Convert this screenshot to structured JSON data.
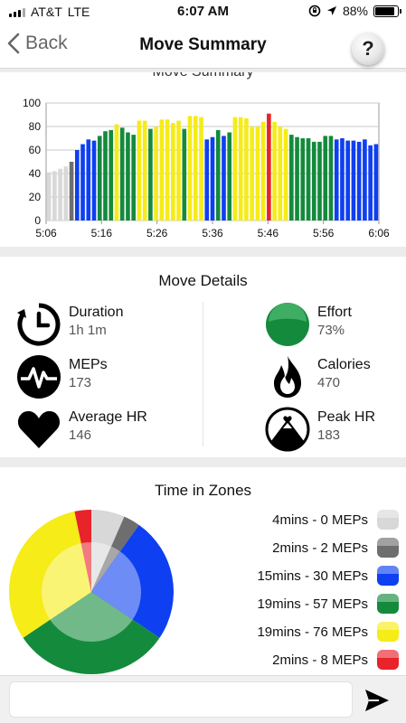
{
  "status": {
    "carrier": "AT&T",
    "network": "LTE",
    "time": "6:07 AM",
    "battery": "88%",
    "battery_level": 0.88
  },
  "nav": {
    "back_label": "Back",
    "title": "Move Summary",
    "help_label": "?"
  },
  "chart_card": {
    "title": "Move Summary"
  },
  "chart_data": {
    "type": "bar",
    "x_labels": [
      "5:06",
      "5:16",
      "5:26",
      "5:36",
      "5:46",
      "5:56",
      "6:06"
    ],
    "y_ticks": [
      0,
      20,
      40,
      60,
      80,
      100
    ],
    "ylim": [
      0,
      100
    ],
    "xlim": [
      "5:06",
      "6:06"
    ],
    "grid": true,
    "values": [
      41,
      42,
      44,
      46,
      50,
      60,
      65,
      69,
      68,
      72,
      76,
      77,
      82,
      79,
      75,
      73,
      85,
      85,
      78,
      80,
      86,
      86,
      83,
      85,
      78,
      89,
      89,
      88,
      69,
      71,
      77,
      72,
      75,
      88,
      88,
      87,
      80,
      80,
      84,
      91,
      84,
      80,
      78,
      73,
      71,
      70,
      70,
      67,
      67,
      72,
      72,
      69,
      70,
      68,
      68,
      67,
      69,
      64,
      65
    ],
    "bar_zones": [
      0,
      0,
      0,
      0,
      1,
      2,
      2,
      2,
      2,
      3,
      3,
      3,
      4,
      3,
      3,
      3,
      4,
      4,
      3,
      4,
      4,
      4,
      4,
      4,
      3,
      4,
      4,
      4,
      2,
      2,
      3,
      2,
      3,
      4,
      4,
      4,
      4,
      4,
      4,
      5,
      4,
      4,
      4,
      3,
      3,
      3,
      3,
      3,
      3,
      3,
      3,
      2,
      2,
      2,
      2,
      2,
      2,
      2,
      2
    ],
    "zone_colors": [
      "#d8d8d8",
      "#6e6e6e",
      "#0e3ff0",
      "#148a3c",
      "#f5ec18",
      "#e8232a"
    ]
  },
  "details": {
    "title": "Move Details",
    "items": [
      {
        "label": "Duration",
        "value": "1h 1m",
        "icon": "clock-icon"
      },
      {
        "label": "Effort",
        "value": "73%",
        "icon": "effort-icon"
      },
      {
        "label": "MEPs",
        "value": "173",
        "icon": "meps-icon"
      },
      {
        "label": "Calories",
        "value": "470",
        "icon": "flame-icon"
      },
      {
        "label": "Average HR",
        "value": "146",
        "icon": "heart-icon"
      },
      {
        "label": "Peak HR",
        "value": "183",
        "icon": "peak-hr-icon"
      }
    ]
  },
  "zones": {
    "title": "Time in Zones",
    "legend": [
      {
        "label": "4mins - 0 MEPs",
        "color": "#d8d8d8"
      },
      {
        "label": "2mins - 2 MEPs",
        "color": "#6e6e6e"
      },
      {
        "label": "15mins - 30 MEPs",
        "color": "#0e3ff0"
      },
      {
        "label": "19mins - 57 MEPs",
        "color": "#148a3c"
      },
      {
        "label": "19mins - 76 MEPs",
        "color": "#f5ec18"
      },
      {
        "label": "2mins - 8 MEPs",
        "color": "#e8232a"
      }
    ],
    "minutes": [
      4,
      2,
      15,
      19,
      19,
      2
    ]
  },
  "input": {
    "placeholder": "",
    "send_icon": "send-icon"
  }
}
